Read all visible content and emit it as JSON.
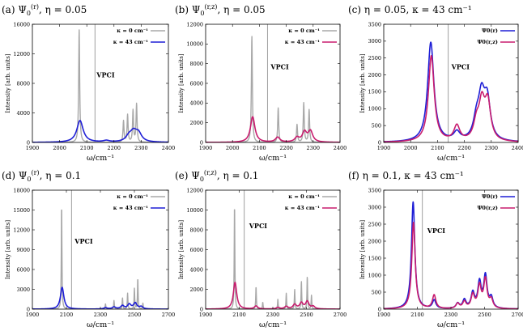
{
  "colors": {
    "gray": "#a8a8a8",
    "blue": "#1f1fd6",
    "magenta": "#c81c6e",
    "vline": "#888888"
  },
  "chart_data": [
    {
      "id": "a",
      "type": "line",
      "title": "(a) Ψ0(r), η = 0.05",
      "xlabel": "ω/cm⁻¹",
      "ylabel": "Intensity [arb. units]",
      "xlim": [
        1900,
        2400
      ],
      "ylim": [
        0,
        16000
      ],
      "xticks": [
        1900,
        2000,
        2100,
        2200,
        2300,
        2400
      ],
      "yticks": [
        0,
        4000,
        8000,
        12000,
        16000
      ],
      "annotation": "VPCI",
      "vline_x": 2130,
      "legend": [
        "κ = 0 cm⁻¹",
        "κ = 43 cm⁻¹"
      ],
      "series": [
        {
          "name": "κ = 0 cm⁻¹",
          "color": "gray",
          "width": 1.4,
          "baseline": 0,
          "gamma": 2.2,
          "peaks": [
            [
              2072,
              15300
            ],
            [
              2235,
              2900
            ],
            [
              2250,
              3700
            ],
            [
              2270,
              4300
            ],
            [
              2283,
              5200
            ]
          ]
        },
        {
          "name": "κ = 43 cm⁻¹",
          "color": "blue",
          "width": 1.6,
          "baseline": 0,
          "gamma": 14,
          "peaks": [
            [
              2075,
              2950
            ],
            [
              2172,
              200
            ],
            [
              2255,
              700
            ],
            [
              2272,
              1200
            ],
            [
              2290,
              1100
            ]
          ]
        }
      ]
    },
    {
      "id": "b",
      "type": "line",
      "title": "(b) Ψ0(r,z), η = 0.05",
      "xlabel": "ω/cm⁻¹",
      "ylabel": "Intensity [arb. units]",
      "xlim": [
        1900,
        2400
      ],
      "ylim": [
        0,
        12000
      ],
      "xticks": [
        1900,
        2000,
        2100,
        2200,
        2300,
        2400
      ],
      "yticks": [
        0,
        2000,
        4000,
        6000,
        8000,
        10000,
        12000
      ],
      "annotation": "VPCI",
      "vline_x": 2130,
      "legend": [
        "κ = 0 cm⁻¹",
        "κ = 43 cm⁻¹"
      ],
      "series": [
        {
          "name": "κ = 0 cm⁻¹",
          "color": "gray",
          "width": 1.4,
          "baseline": 0,
          "gamma": 2.2,
          "peaks": [
            [
              2072,
              10800
            ],
            [
              2170,
              3500
            ],
            [
              2240,
              1800
            ],
            [
              2265,
              4000
            ],
            [
              2285,
              3300
            ]
          ]
        },
        {
          "name": "κ = 43 cm⁻¹",
          "color": "magenta",
          "width": 1.6,
          "baseline": 0,
          "gamma": 10,
          "peaks": [
            [
              2075,
              2600
            ],
            [
              2168,
              500
            ],
            [
              2240,
              450
            ],
            [
              2268,
              1000
            ],
            [
              2290,
              1100
            ]
          ]
        }
      ]
    },
    {
      "id": "c",
      "type": "line",
      "title": "(c) η = 0.05, κ = 43 cm⁻¹",
      "xlabel": "ω/cm⁻¹",
      "ylabel": "Intensity [arb. units]",
      "xlim": [
        1900,
        2400
      ],
      "ylim": [
        0,
        3500
      ],
      "xticks": [
        1900,
        2000,
        2100,
        2200,
        2300,
        2400
      ],
      "yticks": [
        0,
        500,
        1000,
        1500,
        2000,
        2500,
        3000,
        3500
      ],
      "annotation": "VPCI",
      "vline_x": 2140,
      "legend": [
        "Ψ0(r)",
        "Ψ0(r,z)"
      ],
      "series": [
        {
          "name": "Ψ0(r)",
          "color": "blue",
          "width": 1.6,
          "baseline": 0,
          "gamma": 14,
          "peaks": [
            [
              2075,
              2950
            ],
            [
              2172,
              250
            ],
            [
              2245,
              550
            ],
            [
              2264,
              1200
            ],
            [
              2285,
              1150
            ]
          ]
        },
        {
          "name": "Ψ0(r,z)",
          "color": "magenta",
          "width": 1.6,
          "baseline": 0,
          "gamma": 13,
          "peaks": [
            [
              2077,
              2550
            ],
            [
              2172,
              450
            ],
            [
              2245,
              500
            ],
            [
              2265,
              1050
            ],
            [
              2287,
              1100
            ]
          ]
        }
      ]
    },
    {
      "id": "d",
      "type": "line",
      "title": "(d) Ψ0(r), η = 0.1",
      "xlabel": "ω/cm⁻¹",
      "ylabel": "Intensity [arb. units]",
      "xlim": [
        1900,
        2700
      ],
      "ylim": [
        0,
        18000
      ],
      "xticks": [
        1900,
        2100,
        2300,
        2500,
        2700
      ],
      "yticks": [
        0,
        3000,
        6000,
        9000,
        12000,
        15000,
        18000
      ],
      "annotation": "VPCI",
      "vline_x": 2130,
      "legend": [
        "κ = 0 cm⁻¹",
        "κ = 43 cm⁻¹"
      ],
      "series": [
        {
          "name": "κ = 0 cm⁻¹",
          "color": "gray",
          "width": 1.4,
          "baseline": 0,
          "gamma": 2.2,
          "peaks": [
            [
              2072,
              16000
            ],
            [
              2330,
              800
            ],
            [
              2380,
              1300
            ],
            [
              2430,
              1700
            ],
            [
              2460,
              2400
            ],
            [
              2500,
              3100
            ],
            [
              2520,
              4700
            ],
            [
              2550,
              900
            ]
          ]
        },
        {
          "name": "κ = 43 cm⁻¹",
          "color": "blue",
          "width": 1.6,
          "baseline": 0,
          "gamma": 12,
          "peaks": [
            [
              2075,
              3300
            ],
            [
              2330,
              200
            ],
            [
              2380,
              300
            ],
            [
              2430,
              500
            ],
            [
              2470,
              700
            ],
            [
              2505,
              900
            ],
            [
              2540,
              350
            ]
          ]
        }
      ]
    },
    {
      "id": "e",
      "type": "line",
      "title": "(e) Ψ0(r,z), η = 0.1",
      "xlabel": "ω/cm⁻¹",
      "ylabel": "Intensity [arb. units]",
      "xlim": [
        1900,
        2700
      ],
      "ylim": [
        0,
        12000
      ],
      "xticks": [
        1900,
        2100,
        2300,
        2500,
        2700
      ],
      "yticks": [
        0,
        2000,
        4000,
        6000,
        8000,
        10000,
        12000
      ],
      "annotation": "VPCI",
      "vline_x": 2130,
      "legend": [
        "κ = 0 cm⁻¹",
        "κ = 43 cm⁻¹"
      ],
      "series": [
        {
          "name": "κ = 0 cm⁻¹",
          "color": "gray",
          "width": 1.4,
          "baseline": 0,
          "gamma": 2.2,
          "peaks": [
            [
              2072,
              10700
            ],
            [
              2200,
              2300
            ],
            [
              2240,
              700
            ],
            [
              2330,
              1000
            ],
            [
              2380,
              1600
            ],
            [
              2430,
              2000
            ],
            [
              2470,
              2800
            ],
            [
              2505,
              3300
            ],
            [
              2530,
              1400
            ]
          ]
        },
        {
          "name": "κ = 43 cm⁻¹",
          "color": "magenta",
          "width": 1.6,
          "baseline": 0,
          "gamma": 12,
          "peaks": [
            [
              2075,
              2700
            ],
            [
              2200,
              300
            ],
            [
              2330,
              150
            ],
            [
              2380,
              250
            ],
            [
              2430,
              450
            ],
            [
              2470,
              600
            ],
            [
              2505,
              750
            ],
            [
              2540,
              250
            ]
          ]
        }
      ]
    },
    {
      "id": "f",
      "type": "line",
      "title": "(f) η = 0.1, κ = 43 cm⁻¹",
      "xlabel": "ω/cm⁻¹",
      "ylabel": "Intensity [arb. units]",
      "xlim": [
        1900,
        2700
      ],
      "ylim": [
        0,
        3500
      ],
      "xticks": [
        1900,
        2100,
        2300,
        2500,
        2700
      ],
      "yticks": [
        0,
        500,
        1000,
        1500,
        2000,
        2500,
        3000,
        3500
      ],
      "annotation": "VPCI",
      "vline_x": 2130,
      "legend": [
        "Ψ0(r)",
        "Ψ0(r,z)"
      ],
      "series": [
        {
          "name": "Ψ0(r)",
          "color": "blue",
          "width": 1.6,
          "baseline": 0,
          "gamma": 12,
          "peaks": [
            [
              2075,
              3150
            ],
            [
              2200,
              250
            ],
            [
              2340,
              150
            ],
            [
              2380,
              250
            ],
            [
              2430,
              450
            ],
            [
              2470,
              750
            ],
            [
              2505,
              950
            ],
            [
              2540,
              300
            ]
          ]
        },
        {
          "name": "Ψ0(r,z)",
          "color": "magenta",
          "width": 1.6,
          "baseline": 0,
          "gamma": 12,
          "peaks": [
            [
              2077,
              2550
            ],
            [
              2200,
              400
            ],
            [
              2340,
              150
            ],
            [
              2380,
              200
            ],
            [
              2430,
              400
            ],
            [
              2470,
              650
            ],
            [
              2505,
              850
            ],
            [
              2540,
              250
            ]
          ]
        }
      ]
    }
  ]
}
